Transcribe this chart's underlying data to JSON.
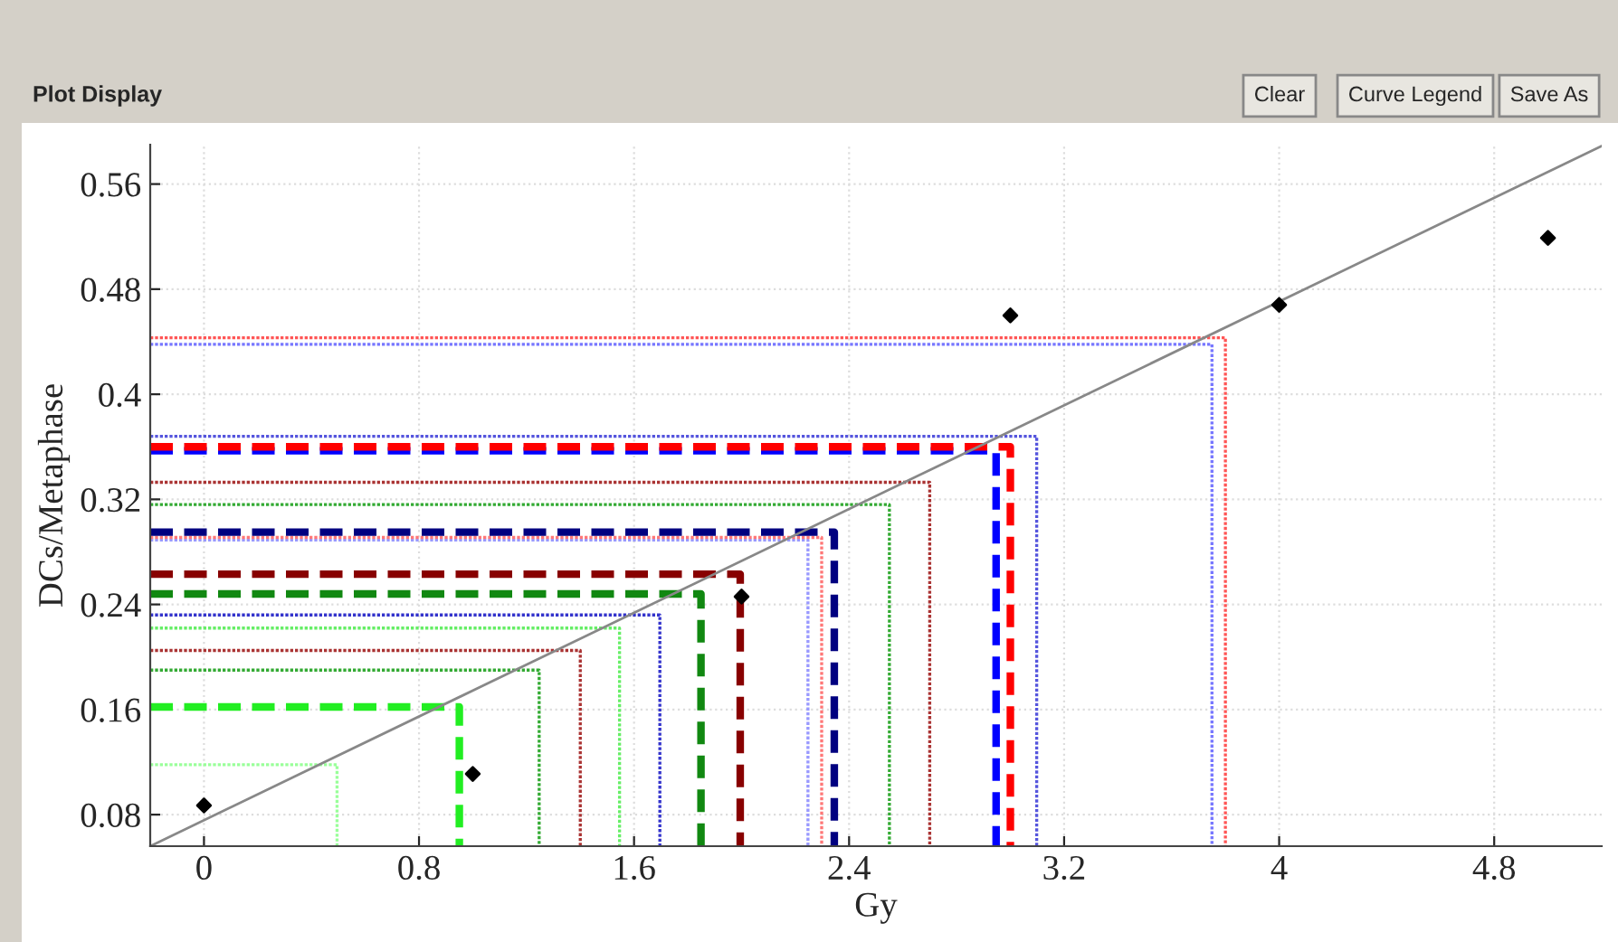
{
  "chart_data": {
    "type": "line",
    "title": "Plot Display",
    "annotations": [
      "Clear",
      "Curve Legend",
      "Save As"
    ],
    "xlabel": "Gy",
    "ylabel": "DCs/Metaphase",
    "xlim": [
      -0.2,
      5.2
    ],
    "ylim": [
      0.056,
      0.59
    ],
    "xticks": [
      0,
      0.8,
      1.6,
      2.4,
      3.2,
      4,
      4.8
    ],
    "yticks": [
      0.08,
      0.16,
      0.24,
      0.32,
      0.4,
      0.48,
      0.56
    ],
    "grid": true,
    "series": [
      {
        "color": "#99ff99",
        "line_style": "dotted",
        "x": [
          -0.2,
          0.495,
          0.495
        ],
        "values": [
          0.118,
          0.118,
          0.056
        ]
      },
      {
        "color": "#22ee22",
        "line_style": "dashed",
        "x": [
          -0.2,
          0.95,
          0.95
        ],
        "values": [
          0.162,
          0.162,
          0.056
        ]
      },
      {
        "color": "#33aa33",
        "line_style": "dotted",
        "x": [
          -0.2,
          1.247,
          1.247
        ],
        "values": [
          0.19,
          0.19,
          0.056
        ]
      },
      {
        "color": "#aa3333",
        "line_style": "dotted",
        "x": [
          -0.2,
          1.4,
          1.4
        ],
        "values": [
          0.205,
          0.205,
          0.056
        ]
      },
      {
        "color": "#66ee66",
        "line_style": "dotted",
        "x": [
          -0.2,
          1.546,
          1.546
        ],
        "values": [
          0.222,
          0.222,
          0.056
        ]
      },
      {
        "color": "#3333cc",
        "line_style": "dotted",
        "x": [
          -0.2,
          1.696,
          1.696
        ],
        "values": [
          0.232,
          0.232,
          0.056
        ]
      },
      {
        "color": "#118811",
        "line_style": "dashed",
        "x": [
          -0.2,
          1.849,
          1.849
        ],
        "values": [
          0.248,
          0.248,
          0.056
        ]
      },
      {
        "color": "#880000",
        "line_style": "dashed",
        "x": [
          -0.2,
          1.995,
          1.995
        ],
        "values": [
          0.263,
          0.263,
          0.056
        ]
      },
      {
        "color": "#9999ff",
        "line_style": "dotted",
        "x": [
          -0.2,
          2.247,
          2.247
        ],
        "values": [
          0.289,
          0.289,
          0.056
        ]
      },
      {
        "color": "#ff7777",
        "line_style": "dotted",
        "x": [
          -0.2,
          2.298,
          2.298
        ],
        "values": [
          0.291,
          0.291,
          0.056
        ]
      },
      {
        "color": "#000080",
        "line_style": "dashed",
        "x": [
          -0.2,
          2.345,
          2.345
        ],
        "values": [
          0.295,
          0.295,
          0.056
        ]
      },
      {
        "color": "#33aa33",
        "line_style": "dotted",
        "x": [
          -0.2,
          2.55,
          2.55
        ],
        "values": [
          0.316,
          0.316,
          0.056
        ]
      },
      {
        "color": "#aa3333",
        "line_style": "dotted",
        "x": [
          -0.2,
          2.7,
          2.7
        ],
        "values": [
          0.333,
          0.333,
          0.056
        ]
      },
      {
        "color": "#0000ff",
        "line_style": "dashed",
        "x": [
          -0.2,
          2.947,
          2.947
        ],
        "values": [
          0.357,
          0.357,
          0.056
        ]
      },
      {
        "color": "#ff0000",
        "line_style": "dashed",
        "x": [
          -0.2,
          3.0,
          3.0
        ],
        "values": [
          0.36,
          0.36,
          0.056
        ]
      },
      {
        "color": "#5555dd",
        "line_style": "dotted",
        "x": [
          -0.2,
          3.098,
          3.098
        ],
        "values": [
          0.368,
          0.368,
          0.056
        ]
      },
      {
        "color": "#7777ff",
        "line_style": "dotted",
        "x": [
          -0.2,
          3.75,
          3.75
        ],
        "values": [
          0.438,
          0.438,
          0.056
        ]
      },
      {
        "color": "#ff5555",
        "line_style": "dotted",
        "x": [
          -0.2,
          3.8,
          3.8
        ],
        "values": [
          0.443,
          0.443,
          0.056
        ]
      },
      {
        "color": "#888888",
        "line_style": "solid",
        "x": [
          -0.2,
          5.2
        ],
        "values": [
          0.056,
          0.589
        ]
      },
      {
        "type": "scatter",
        "color": "#000000",
        "marker": "diamond",
        "x": [
          0,
          1,
          2,
          3,
          4,
          5
        ],
        "values": [
          0.087,
          0.111,
          0.246,
          0.46,
          0.468,
          0.519
        ]
      }
    ]
  }
}
